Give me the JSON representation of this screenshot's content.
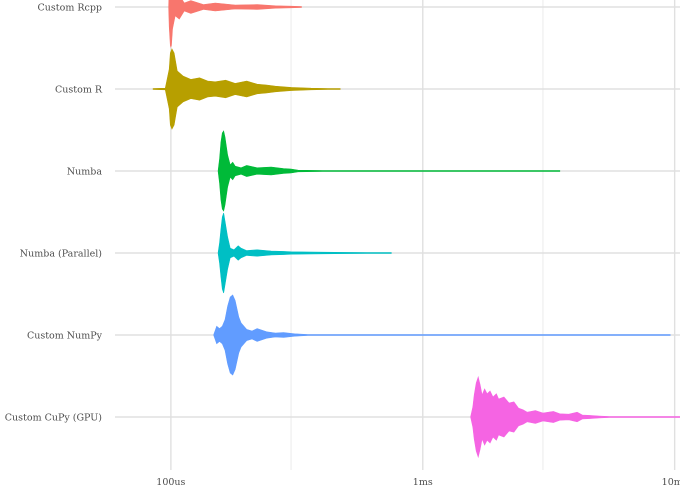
{
  "chart_data": {
    "type": "violin",
    "orientation": "horizontal",
    "x_scale": "log10",
    "x_unit": "seconds",
    "xlim": [
      6e-05,
      0.0105
    ],
    "x_ticks": [
      {
        "value": 0.0001,
        "label": "100us"
      },
      {
        "value": 0.001,
        "label": "1ms"
      },
      {
        "value": 0.01,
        "label": "10ms"
      }
    ],
    "grid": true,
    "legend": "none",
    "categories": [
      "Custom Rcpp",
      "Custom R",
      "Numba",
      "Numba (Parallel)",
      "Custom NumPy",
      "Custom CuPy (GPU)"
    ],
    "series": [
      {
        "category": "Custom Rcpp",
        "color": "#F8766D",
        "min": 9.8e-05,
        "max": 0.00033,
        "profile": [
          [
            9.8e-05,
            0.0
          ],
          [
            9.85e-05,
            0.5
          ],
          [
            9.95e-05,
            0.96
          ],
          [
            0.0001,
            1.0
          ],
          [
            0.0001005,
            0.96
          ],
          [
            0.0001015,
            0.55
          ],
          [
            0.000104,
            0.22
          ],
          [
            0.000108,
            0.3
          ],
          [
            0.000113,
            0.1
          ],
          [
            0.00012,
            0.16
          ],
          [
            0.000135,
            0.06
          ],
          [
            0.00015,
            0.1
          ],
          [
            0.00018,
            0.05
          ],
          [
            0.00022,
            0.06
          ],
          [
            0.00026,
            0.03
          ],
          [
            0.0003,
            0.02
          ],
          [
            0.00033,
            0.0
          ]
        ]
      },
      {
        "category": "Custom R",
        "color": "#B79F00",
        "min": 8.5e-05,
        "max": 0.00047,
        "profile": [
          [
            8.5e-05,
            0.0
          ],
          [
            9.5e-05,
            0.02
          ],
          [
            9.85e-05,
            0.5
          ],
          [
            9.95e-05,
            0.9
          ],
          [
            0.000101,
            1.0
          ],
          [
            0.000103,
            0.9
          ],
          [
            0.000106,
            0.45
          ],
          [
            0.000112,
            0.32
          ],
          [
            0.00012,
            0.24
          ],
          [
            0.00013,
            0.28
          ],
          [
            0.00014,
            0.2
          ],
          [
            0.00015,
            0.18
          ],
          [
            0.000165,
            0.22
          ],
          [
            0.00018,
            0.14
          ],
          [
            0.0002,
            0.2
          ],
          [
            0.00022,
            0.12
          ],
          [
            0.00024,
            0.1
          ],
          [
            0.00026,
            0.07
          ],
          [
            0.0003,
            0.04
          ],
          [
            0.00036,
            0.02
          ],
          [
            0.00042,
            0.01
          ],
          [
            0.00047,
            0.0
          ]
        ]
      },
      {
        "category": "Numba",
        "color": "#00BA38",
        "min": 0.000154,
        "max": 0.0035,
        "profile": [
          [
            0.000154,
            0.0
          ],
          [
            0.000156,
            0.3
          ],
          [
            0.000158,
            0.72
          ],
          [
            0.00016,
            0.95
          ],
          [
            0.000162,
            1.0
          ],
          [
            0.000164,
            0.85
          ],
          [
            0.000168,
            0.4
          ],
          [
            0.000172,
            0.15
          ],
          [
            0.000176,
            0.22
          ],
          [
            0.00018,
            0.12
          ],
          [
            0.00019,
            0.08
          ],
          [
            0.0002,
            0.14
          ],
          [
            0.00022,
            0.08
          ],
          [
            0.00025,
            0.1
          ],
          [
            0.00028,
            0.06
          ],
          [
            0.0003,
            0.05
          ],
          [
            0.00032,
            0.02
          ],
          [
            0.0004,
            0.01
          ],
          [
            0.0008,
            0.008
          ],
          [
            0.002,
            0.006
          ],
          [
            0.0035,
            0.0
          ]
        ]
      },
      {
        "category": "Numba (Parallel)",
        "color": "#00BFC4",
        "min": 0.000154,
        "max": 0.00075,
        "profile": [
          [
            0.000154,
            0.0
          ],
          [
            0.000156,
            0.25
          ],
          [
            0.000158,
            0.6
          ],
          [
            0.00016,
            0.9
          ],
          [
            0.000162,
            1.0
          ],
          [
            0.000164,
            0.8
          ],
          [
            0.000168,
            0.4
          ],
          [
            0.000172,
            0.12
          ],
          [
            0.000178,
            0.08
          ],
          [
            0.000185,
            0.18
          ],
          [
            0.00019,
            0.12
          ],
          [
            0.0002,
            0.06
          ],
          [
            0.00022,
            0.08
          ],
          [
            0.00025,
            0.05
          ],
          [
            0.00028,
            0.04
          ],
          [
            0.0003,
            0.03
          ],
          [
            0.0004,
            0.02
          ],
          [
            0.0005,
            0.015
          ],
          [
            0.0006,
            0.012
          ],
          [
            0.00075,
            0.0
          ]
        ]
      },
      {
        "category": "Custom NumPy",
        "color": "#619CFF",
        "min": 0.000148,
        "max": 0.0096,
        "profile": [
          [
            0.000148,
            0.0
          ],
          [
            0.000152,
            0.22
          ],
          [
            0.000156,
            0.16
          ],
          [
            0.00016,
            0.22
          ],
          [
            0.000164,
            0.38
          ],
          [
            0.000168,
            0.72
          ],
          [
            0.000172,
            0.95
          ],
          [
            0.000176,
            1.0
          ],
          [
            0.00018,
            0.86
          ],
          [
            0.000186,
            0.45
          ],
          [
            0.00019,
            0.3
          ],
          [
            0.0002,
            0.14
          ],
          [
            0.00021,
            0.1
          ],
          [
            0.00022,
            0.16
          ],
          [
            0.00024,
            0.08
          ],
          [
            0.00026,
            0.05
          ],
          [
            0.00028,
            0.06
          ],
          [
            0.00031,
            0.03
          ],
          [
            0.00035,
            0.01
          ],
          [
            0.0006,
            0.008
          ],
          [
            0.002,
            0.006
          ],
          [
            0.005,
            0.006
          ],
          [
            0.0096,
            0.0
          ]
        ]
      },
      {
        "category": "Custom CuPy (GPU)",
        "color": "#F564E3",
        "min": 0.00155,
        "max": 0.011,
        "profile": [
          [
            0.00155,
            0.0
          ],
          [
            0.00158,
            0.25
          ],
          [
            0.0016,
            0.55
          ],
          [
            0.00163,
            0.85
          ],
          [
            0.00166,
            1.0
          ],
          [
            0.00169,
            0.8
          ],
          [
            0.00172,
            0.55
          ],
          [
            0.00176,
            0.7
          ],
          [
            0.0018,
            0.58
          ],
          [
            0.00185,
            0.65
          ],
          [
            0.0019,
            0.5
          ],
          [
            0.00196,
            0.58
          ],
          [
            0.002,
            0.45
          ],
          [
            0.0021,
            0.5
          ],
          [
            0.0022,
            0.35
          ],
          [
            0.0023,
            0.38
          ],
          [
            0.0024,
            0.22
          ],
          [
            0.0025,
            0.18
          ],
          [
            0.0026,
            0.12
          ],
          [
            0.0028,
            0.16
          ],
          [
            0.003,
            0.1
          ],
          [
            0.0033,
            0.14
          ],
          [
            0.0035,
            0.08
          ],
          [
            0.0038,
            0.07
          ],
          [
            0.0041,
            0.12
          ],
          [
            0.0043,
            0.05
          ],
          [
            0.0046,
            0.04
          ],
          [
            0.005,
            0.025
          ],
          [
            0.0055,
            0.012
          ],
          [
            0.006,
            0.006
          ],
          [
            0.008,
            0.003
          ],
          [
            0.011,
            0.0
          ]
        ]
      }
    ]
  }
}
